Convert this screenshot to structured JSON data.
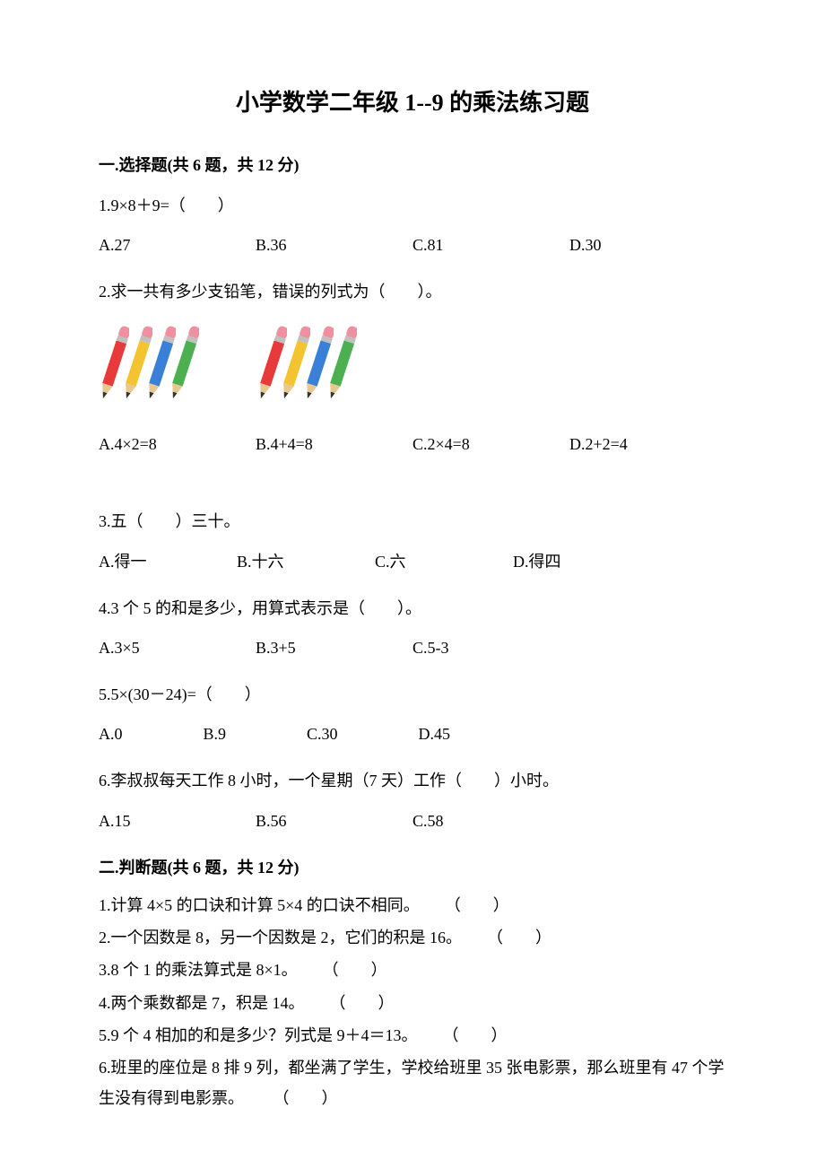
{
  "title": "小学数学二年级 1--9 的乘法练习题",
  "section1": {
    "header": "一.选择题(共 6 题，共 12 分)",
    "q1": {
      "text": "1.9×8＋9=（　　）",
      "opts": {
        "a": "A.27",
        "b": "B.36",
        "c": "C.81",
        "d": "D.30"
      }
    },
    "q2": {
      "text": "2.求一共有多少支铅笔，错误的列式为（　　）。",
      "opts": {
        "a": "A.4×2=8",
        "b": "B.4+4=8",
        "c": "C.2×4=8",
        "d": "D.2+2=4"
      }
    },
    "q3": {
      "text": "3.五（　　）三十。",
      "opts": {
        "a": "A.得一",
        "b": "B.十六",
        "c": "C.六",
        "d": "D.得四"
      }
    },
    "q4": {
      "text": "4.3 个 5 的和是多少，用算式表示是（　　）。",
      "opts": {
        "a": "A.3×5",
        "b": "B.3+5",
        "c": "C.5-3"
      }
    },
    "q5": {
      "text": "5.5×(30－24)=（　　）",
      "opts": {
        "a": "A.0",
        "b": "B.9",
        "c": "C.30",
        "d": "D.45"
      }
    },
    "q6": {
      "text": "6.李叔叔每天工作 8 小时，一个星期（7 天）工作（　　）小时。",
      "opts": {
        "a": "A.15",
        "b": "B.56",
        "c": "C.58"
      }
    }
  },
  "section2": {
    "header": "二.判断题(共 6 题，共 12 分)",
    "q1": {
      "text": "1.计算 4×5 的口诀和计算 5×4 的口诀不相同。",
      "blank": "（　　）"
    },
    "q2": {
      "text": "2.一个因数是 8，另一个因数是 2，它们的积是 16。",
      "blank": "（　　）"
    },
    "q3": {
      "text": "3.8 个 1 的乘法算式是 8×1。",
      "blank": "（　　）"
    },
    "q4": {
      "text": "4.两个乘数都是 7，积是 14。",
      "blank": "（　　）"
    },
    "q5": {
      "text": "5.9 个 4 相加的和是多少？列式是 9＋4＝13。",
      "blank": "（　　）"
    },
    "q6": {
      "text": "6.班里的座位是 8 排 9 列，都坐满了学生，学校给班里 35 张电影票，那么班里有 47 个学生没有得到电影票。",
      "blank": "（　　）"
    }
  },
  "pencil_colors": {
    "red": "#e83a3a",
    "yellow": "#f4c430",
    "blue": "#3a7fd8",
    "green": "#4cb050",
    "eraser": "#f08fa0",
    "ferrule": "#c0c0c0",
    "tip": "#333333",
    "wood": "#e8c890"
  }
}
